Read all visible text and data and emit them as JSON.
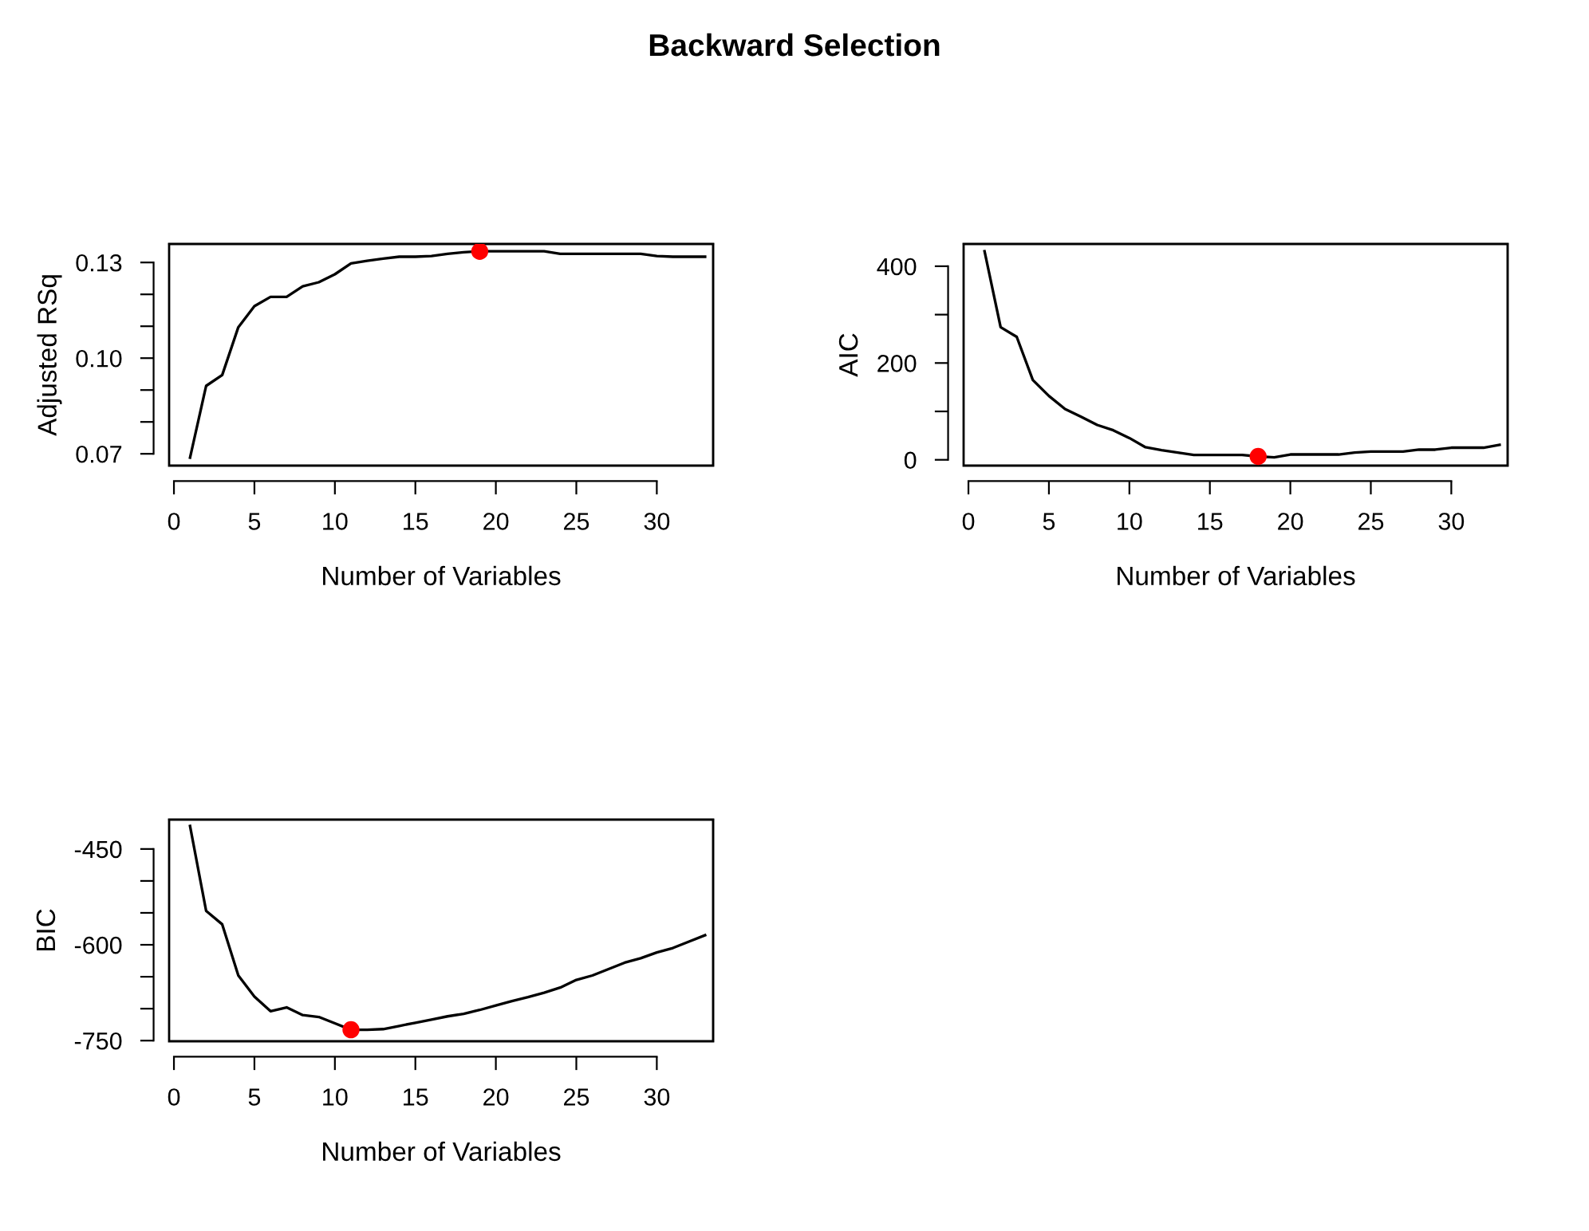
{
  "chart_data": [
    {
      "type": "line",
      "title": "Backward Selection",
      "xlabel": "Number of Variables",
      "ylabel": "Adjusted RSq",
      "grid": false,
      "legend": false,
      "xlim": [
        -0.3,
        33.5
      ],
      "xticks": [
        0,
        5,
        10,
        15,
        20,
        25,
        30
      ],
      "ylim": [
        0.0663,
        0.1358
      ],
      "yticks": [
        0.07,
        {
          "value": 0.08,
          "label": null
        },
        {
          "value": 0.09,
          "label": null
        },
        {
          "value": 0.1,
          "label": "0.10"
        },
        {
          "value": 0.11,
          "label": null
        },
        {
          "value": 0.12,
          "label": null
        },
        0.13
      ],
      "series": [
        {
          "marker": "none",
          "color": "#000000",
          "x": [
            1,
            2,
            3,
            4,
            5,
            6,
            7,
            8,
            9,
            10,
            11,
            12,
            13,
            14,
            15,
            16,
            17,
            18,
            19,
            20,
            21,
            22,
            23,
            24,
            25,
            26,
            27,
            28,
            29,
            30,
            31,
            32,
            33
          ],
          "values": [
            0.0688,
            0.0913,
            0.0947,
            0.1097,
            0.1163,
            0.1192,
            0.1192,
            0.1225,
            0.1238,
            0.1263,
            0.1297,
            0.1305,
            0.1312,
            0.1318,
            0.1318,
            0.132,
            0.1327,
            0.1332,
            0.1335,
            0.1335,
            0.1335,
            0.1335,
            0.1335,
            0.1327,
            0.1327,
            0.1327,
            0.1327,
            0.1327,
            0.1327,
            0.132,
            0.1318,
            0.1318,
            0.1318
          ]
        },
        {
          "type": "scatter",
          "marker": "circle",
          "color": "#ff0000",
          "x": [
            19
          ],
          "values": [
            0.1335
          ]
        }
      ]
    },
    {
      "type": "line",
      "xlabel": "Number of Variables",
      "ylabel": "AIC",
      "grid": false,
      "legend": false,
      "xlim": [
        -0.3,
        33.5
      ],
      "xticks": [
        0,
        5,
        10,
        15,
        20,
        25,
        30
      ],
      "ylim": [
        -12,
        446
      ],
      "yticks": [
        0,
        {
          "value": 100,
          "label": null
        },
        200,
        {
          "value": 300,
          "label": null
        },
        400
      ],
      "series": [
        {
          "marker": "none",
          "color": "#000000",
          "x": [
            1,
            2,
            3,
            4,
            5,
            6,
            7,
            8,
            9,
            10,
            11,
            12,
            13,
            14,
            15,
            16,
            17,
            18,
            19,
            20,
            21,
            22,
            23,
            24,
            25,
            26,
            27,
            28,
            29,
            30,
            31,
            32,
            33
          ],
          "values": [
            431,
            274,
            254,
            165,
            132,
            105,
            89,
            72,
            61,
            45,
            26,
            20,
            15,
            10,
            10,
            10,
            10,
            7,
            5,
            11,
            11,
            11,
            11,
            15,
            17,
            17,
            17,
            21,
            21,
            25,
            25,
            25,
            31
          ]
        },
        {
          "type": "scatter",
          "marker": "circle",
          "color": "#ff0000",
          "x": [
            18
          ],
          "values": [
            7
          ]
        }
      ]
    },
    {
      "type": "line",
      "xlabel": "Number of Variables",
      "ylabel": "BIC",
      "grid": false,
      "legend": false,
      "xlim": [
        -0.3,
        33.5
      ],
      "xticks": [
        0,
        5,
        10,
        15,
        20,
        25,
        30
      ],
      "ylim": [
        -751,
        -404
      ],
      "yticks": [
        -750,
        {
          "value": -700,
          "label": null
        },
        {
          "value": -650,
          "label": null
        },
        -600,
        {
          "value": -550,
          "label": null
        },
        {
          "value": -500,
          "label": null
        },
        -450
      ],
      "series": [
        {
          "marker": "none",
          "color": "#000000",
          "x": [
            1,
            2,
            3,
            4,
            5,
            6,
            7,
            8,
            9,
            10,
            11,
            12,
            13,
            14,
            15,
            16,
            17,
            18,
            19,
            20,
            21,
            22,
            23,
            24,
            25,
            26,
            27,
            28,
            29,
            30,
            31,
            32,
            33
          ],
          "values": [
            -414,
            -547,
            -568,
            -648,
            -681,
            -704,
            -698,
            -710,
            -713,
            -723,
            -733,
            -733,
            -732,
            -727,
            -722,
            -717,
            -712,
            -708,
            -702,
            -695,
            -688,
            -682,
            -675,
            -667,
            -655,
            -648,
            -638,
            -628,
            -621,
            -612,
            -605,
            -595,
            -585
          ]
        },
        {
          "type": "scatter",
          "marker": "circle",
          "color": "#ff0000",
          "x": [
            11
          ],
          "values": [
            -733
          ]
        }
      ]
    }
  ]
}
